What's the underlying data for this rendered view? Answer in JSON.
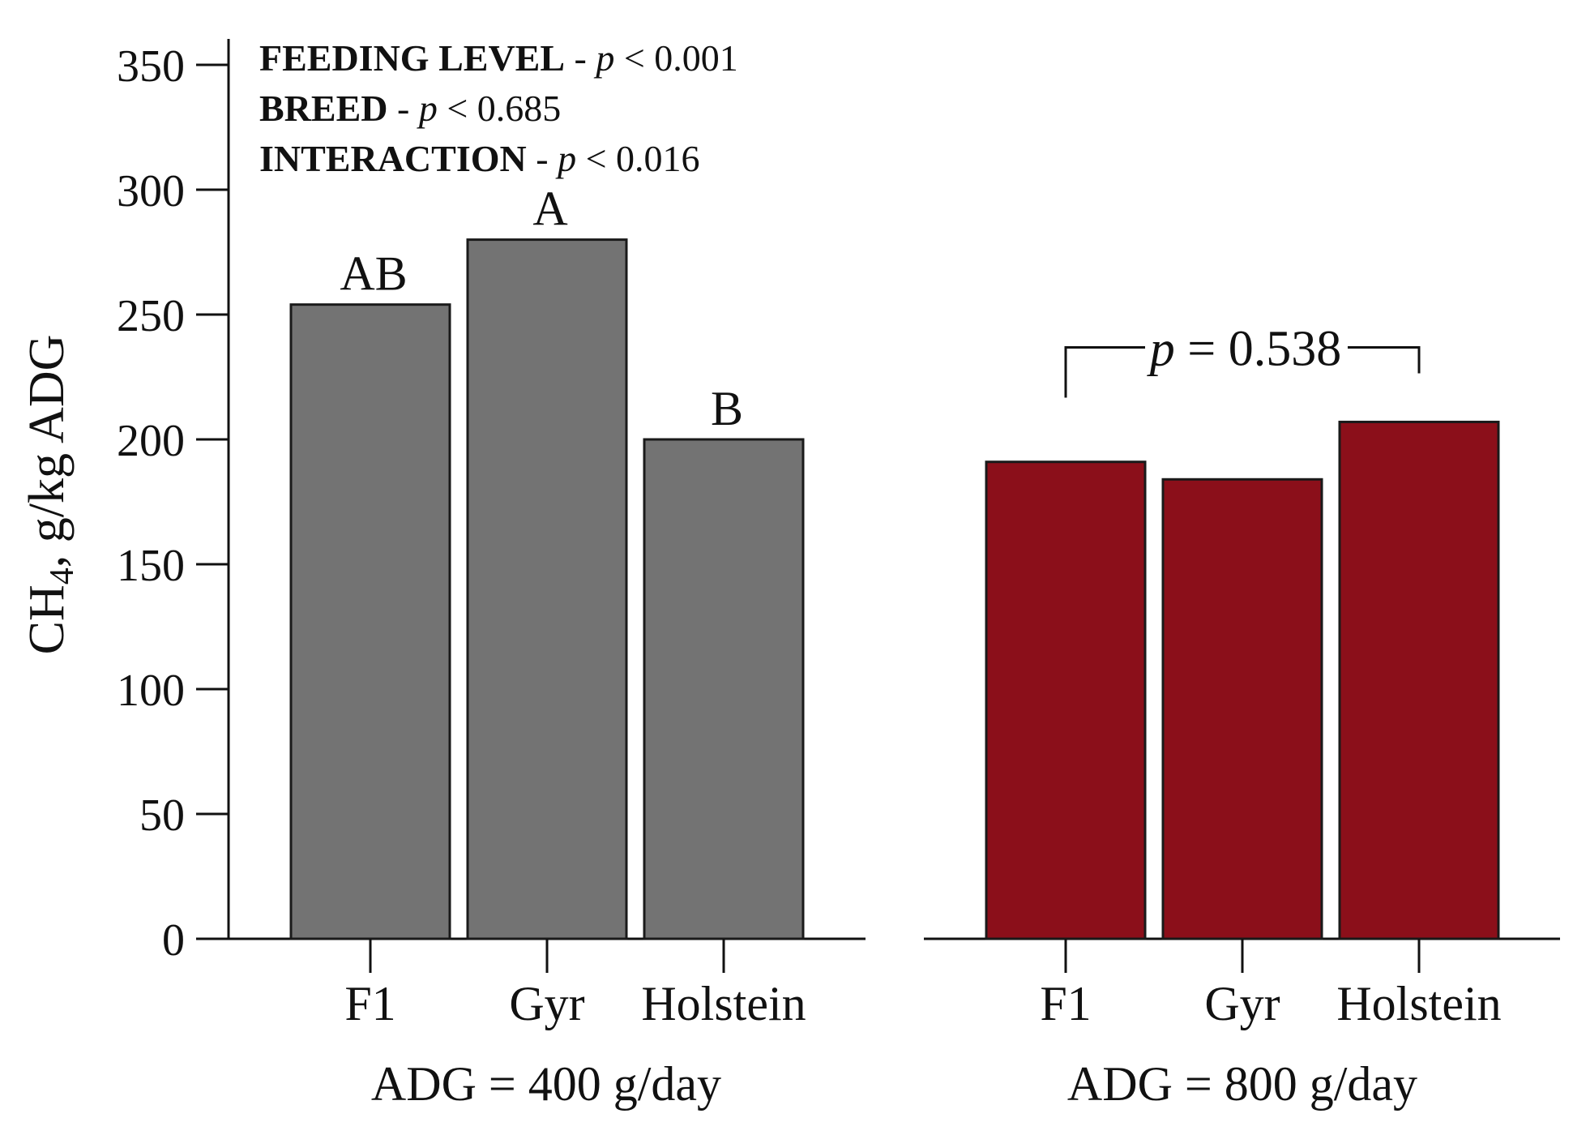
{
  "chart_data": {
    "type": "bar",
    "ylabel": {
      "main": "CH",
      "sub": "4",
      "rest": ", g/kg ADG"
    },
    "ylim": [
      0,
      350
    ],
    "yticks": [
      "0",
      "50",
      "100",
      "150",
      "200",
      "250",
      "300",
      "350"
    ],
    "ytick_values": [
      0,
      50,
      100,
      150,
      200,
      250,
      300,
      350
    ],
    "stats": [
      {
        "label": "FEEDING LEVEL",
        "sep": " - ",
        "p": "p",
        "rest": " < 0.001"
      },
      {
        "label": "BREED",
        "sep": " - ",
        "p": "p",
        "rest": " < 0.685"
      },
      {
        "label": "INTERACTION",
        "sep": " - ",
        "p": "p",
        "rest": " < 0.016"
      }
    ],
    "panels": [
      {
        "name": "ADG = 400 g/day",
        "color": "#737373",
        "categories": [
          "F1",
          "Gyr",
          "Holstein"
        ],
        "values": [
          254,
          280,
          200
        ],
        "letters": [
          "AB",
          "A",
          "B"
        ]
      },
      {
        "name": "ADG = 800 g/day",
        "color": "#8b0f1a",
        "categories": [
          "F1",
          "Gyr",
          "Holstein"
        ],
        "values": [
          191,
          184,
          207
        ],
        "letters": [
          "",
          "",
          ""
        ],
        "bracket": {
          "p": "p",
          "rest": " = 0.538"
        }
      }
    ]
  }
}
